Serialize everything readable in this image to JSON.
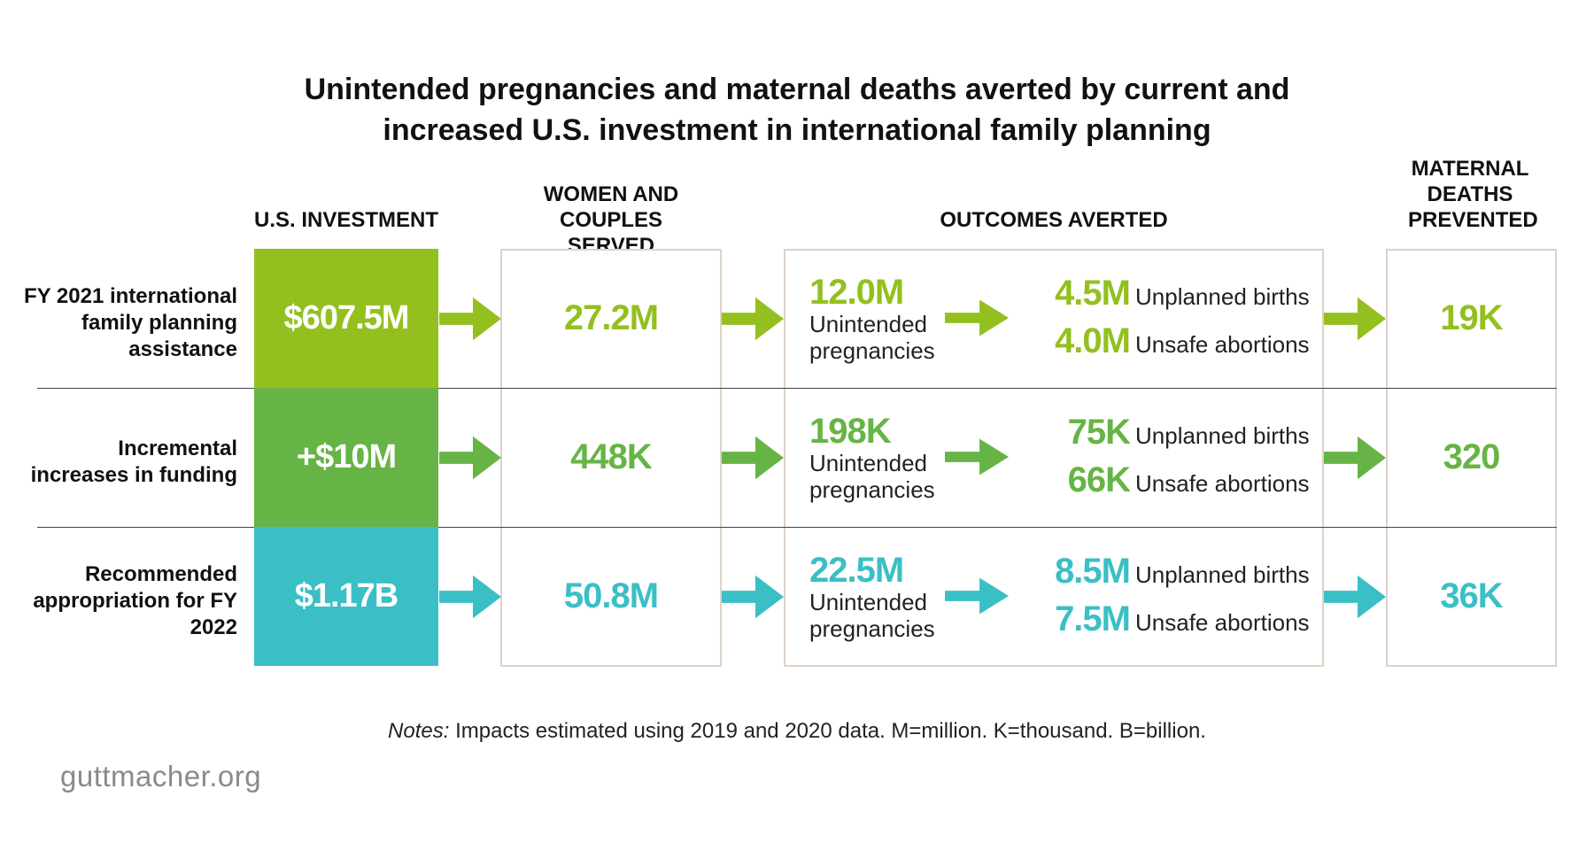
{
  "title": "Unintended pregnancies and maternal deaths averted by current and increased U.S. investment in international family planning",
  "columns": {
    "investment": "U.S. INVESTMENT",
    "served": "WOMEN AND COUPLES SERVED",
    "outcomes": "OUTCOMES AVERTED",
    "deaths": "MATERNAL DEATHS PREVENTED"
  },
  "rows": [
    {
      "label": "FY 2021 international family planning assistance",
      "investment": "$607.5M",
      "served": "27.2M",
      "unintended_value": "12.0M",
      "unintended_label": "Unintended pregnancies",
      "births_value": "4.5M",
      "births_label": "Unplanned births",
      "abortions_value": "4.0M",
      "abortions_label": "Unsafe abortions",
      "deaths": "19K",
      "color": "#93c01f",
      "box_color": "#93c01f"
    },
    {
      "label": "Incremental increases in funding",
      "investment": "+$10M",
      "served": "448K",
      "unintended_value": "198K",
      "unintended_label": "Unintended pregnancies",
      "births_value": "75K",
      "births_label": "Unplanned births",
      "abortions_value": "66K",
      "abortions_label": "Unsafe abortions",
      "deaths": "320",
      "color": "#66b445",
      "box_color": "#66b445"
    },
    {
      "label": "Recommended appropriation for FY 2022",
      "investment": "$1.17B",
      "served": "50.8M",
      "unintended_value": "22.5M",
      "unintended_label": "Unintended pregnancies",
      "births_value": "8.5M",
      "births_label": "Unplanned births",
      "abortions_value": "7.5M",
      "abortions_label": "Unsafe abortions",
      "deaths": "36K",
      "color": "#3bbfc6",
      "box_color": "#3bbfc6"
    }
  ],
  "notes": {
    "prefix": "Notes:",
    "text": " Impacts estimated using 2019 and 2020 data. M=million. K=thousand. B=billion."
  },
  "logo": "guttmacher.org",
  "colors": {
    "box_border": "#ded2c6",
    "divider": "#444444",
    "logo_text": "#8a8a8a"
  }
}
